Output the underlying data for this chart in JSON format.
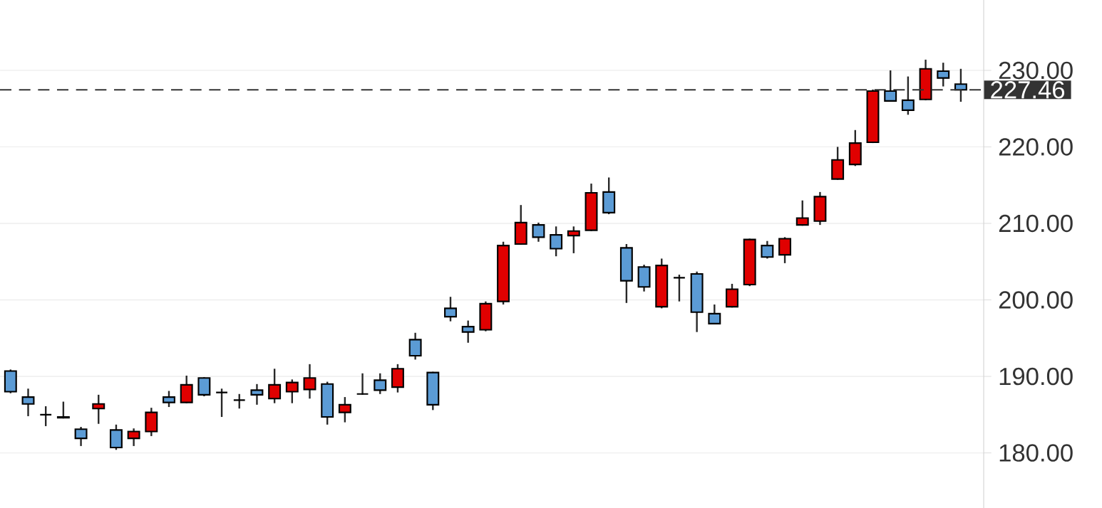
{
  "chart_data": {
    "type": "candlestick",
    "categories": [
      null,
      null,
      null,
      null,
      null,
      null,
      null,
      null,
      null,
      null,
      null,
      null,
      null,
      null,
      null,
      null,
      null,
      null,
      null,
      null,
      null,
      null,
      null,
      null,
      null,
      null,
      null,
      null,
      null,
      null,
      null,
      null,
      null,
      null,
      null,
      null,
      null,
      null,
      null,
      null,
      null,
      null,
      null,
      null,
      null,
      null,
      null,
      null,
      null,
      null,
      null,
      null,
      null,
      null,
      null
    ],
    "ohlc": [
      [
        190.7,
        190.9,
        187.8,
        188.0
      ],
      [
        187.3,
        188.4,
        184.8,
        186.4
      ],
      [
        185.0,
        186.1,
        183.5,
        185.0
      ],
      [
        184.7,
        186.7,
        184.5,
        184.6
      ],
      [
        183.1,
        183.4,
        180.9,
        181.9
      ],
      [
        185.8,
        187.6,
        183.8,
        186.4
      ],
      [
        183.0,
        183.7,
        180.4,
        180.7
      ],
      [
        181.9,
        183.2,
        180.9,
        182.8
      ],
      [
        182.8,
        185.9,
        182.2,
        185.3
      ],
      [
        187.3,
        188.1,
        186.0,
        186.6
      ],
      [
        186.6,
        190.1,
        186.5,
        188.9
      ],
      [
        189.8,
        189.9,
        187.4,
        187.6
      ],
      [
        187.9,
        188.4,
        184.7,
        187.9
      ],
      [
        186.9,
        187.7,
        185.8,
        186.9
      ],
      [
        188.2,
        189.0,
        186.3,
        187.6
      ],
      [
        187.1,
        191.0,
        186.5,
        188.9
      ],
      [
        188.0,
        189.6,
        186.5,
        189.2
      ],
      [
        188.3,
        191.6,
        187.1,
        189.8
      ],
      [
        189.0,
        189.3,
        183.7,
        184.7
      ],
      [
        185.3,
        187.3,
        184.0,
        186.3
      ],
      [
        187.7,
        190.4,
        187.6,
        187.7
      ],
      [
        189.5,
        190.4,
        187.7,
        188.2
      ],
      [
        188.6,
        191.6,
        187.9,
        191.0
      ],
      [
        194.8,
        195.7,
        192.2,
        192.7
      ],
      [
        190.5,
        190.6,
        185.6,
        186.3
      ],
      [
        198.9,
        200.4,
        197.2,
        197.8
      ],
      [
        196.5,
        197.3,
        194.4,
        195.8
      ],
      [
        196.1,
        199.8,
        195.9,
        199.5
      ],
      [
        199.8,
        207.6,
        199.4,
        207.1
      ],
      [
        207.3,
        212.4,
        207.2,
        210.1
      ],
      [
        209.8,
        210.1,
        207.6,
        208.2
      ],
      [
        208.5,
        209.6,
        205.7,
        206.7
      ],
      [
        208.4,
        209.6,
        206.1,
        209.0
      ],
      [
        209.1,
        215.2,
        209.0,
        214.0
      ],
      [
        214.1,
        216.0,
        211.2,
        211.4
      ],
      [
        206.8,
        207.3,
        199.6,
        202.5
      ],
      [
        204.3,
        204.6,
        201.1,
        201.7
      ],
      [
        199.1,
        205.4,
        198.9,
        204.5
      ],
      [
        202.9,
        203.3,
        199.8,
        202.9
      ],
      [
        203.4,
        203.7,
        195.8,
        198.4
      ],
      [
        198.2,
        199.4,
        196.8,
        196.9
      ],
      [
        199.1,
        202.1,
        199.0,
        201.4
      ],
      [
        202.0,
        208.0,
        201.8,
        207.9
      ],
      [
        207.1,
        207.7,
        205.4,
        205.6
      ],
      [
        205.9,
        208.2,
        204.8,
        208.0
      ],
      [
        209.8,
        213.0,
        209.7,
        210.7
      ],
      [
        210.3,
        214.1,
        209.8,
        213.5
      ],
      [
        215.8,
        220.0,
        215.7,
        218.3
      ],
      [
        217.7,
        222.2,
        217.5,
        220.5
      ],
      [
        220.6,
        227.5,
        220.5,
        227.3
      ],
      [
        227.3,
        230.0,
        225.9,
        226.0
      ],
      [
        226.1,
        229.2,
        224.2,
        224.8
      ],
      [
        226.2,
        231.4,
        226.1,
        230.2
      ],
      [
        229.9,
        231.0,
        227.9,
        229.0
      ],
      [
        228.2,
        230.2,
        225.9,
        227.46
      ]
    ],
    "colors": [
      "#5b9bd5",
      "#5b9bd5",
      "#000000",
      "#000000",
      "#5b9bd5",
      "#e00000",
      "#5b9bd5",
      "#e00000",
      "#e00000",
      "#5b9bd5",
      "#e00000",
      "#5b9bd5",
      "#000000",
      "#000000",
      "#5b9bd5",
      "#e00000",
      "#e00000",
      "#e00000",
      "#5b9bd5",
      "#e00000",
      "#000000",
      "#5b9bd5",
      "#e00000",
      "#5b9bd5",
      "#5b9bd5",
      "#5b9bd5",
      "#5b9bd5",
      "#e00000",
      "#e00000",
      "#e00000",
      "#5b9bd5",
      "#5b9bd5",
      "#e00000",
      "#e00000",
      "#5b9bd5",
      "#5b9bd5",
      "#5b9bd5",
      "#e00000",
      "#000000",
      "#5b9bd5",
      "#5b9bd5",
      "#e00000",
      "#e00000",
      "#5b9bd5",
      "#e00000",
      "#e00000",
      "#e00000",
      "#e00000",
      "#e00000",
      "#e00000",
      "#5b9bd5",
      "#5b9bd5",
      "#e00000",
      "#5b9bd5",
      "#5b9bd5"
    ],
    "ylim": [
      172.8,
      239.2
    ],
    "yticks": [
      {
        "value": 180,
        "label": "180.00"
      },
      {
        "value": 190,
        "label": "190.00"
      },
      {
        "value": 200,
        "label": "200.00"
      },
      {
        "value": 210,
        "label": "210.00"
      },
      {
        "value": 220,
        "label": "220.00"
      },
      {
        "value": 230,
        "label": "230.00"
      }
    ],
    "grid": "y",
    "ref_lines": [
      {
        "axis": "y",
        "value": 227.46,
        "label": "227.46",
        "color": "#333333",
        "line_style": "dashed"
      }
    ]
  }
}
